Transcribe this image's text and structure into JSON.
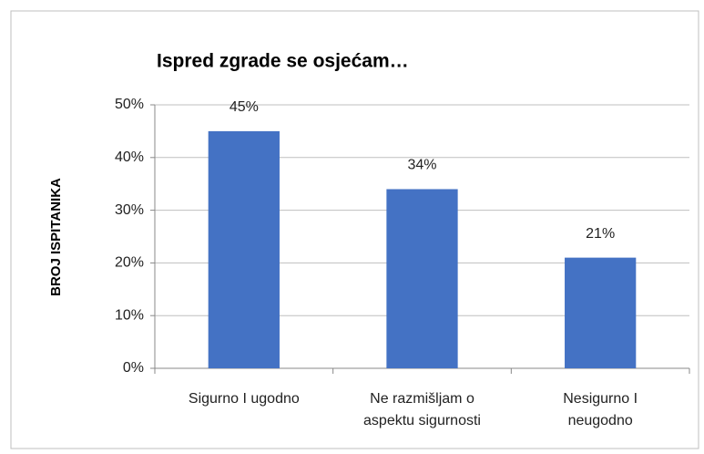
{
  "chart_data": {
    "type": "bar",
    "title": "Ispred zgrade se osjećam…",
    "y_label": "BROJ ISPITANIKA",
    "categories": [
      "Sigurno I ugodno",
      "Ne razmišljam o aspektu sigurnosti",
      "Nesigurno I neugodno"
    ],
    "values": [
      45,
      34,
      21
    ],
    "value_labels": [
      "45%",
      "34%",
      "21%"
    ],
    "color": "#4472c4",
    "ylim": [
      0,
      50
    ],
    "yticks": [
      {
        "value": 0,
        "label": "0%"
      },
      {
        "value": 10,
        "label": "10%"
      },
      {
        "value": 20,
        "label": "20%"
      },
      {
        "value": 30,
        "label": "30%"
      },
      {
        "value": 40,
        "label": "40%"
      },
      {
        "value": 50,
        "label": "50%"
      }
    ],
    "grid": true
  }
}
